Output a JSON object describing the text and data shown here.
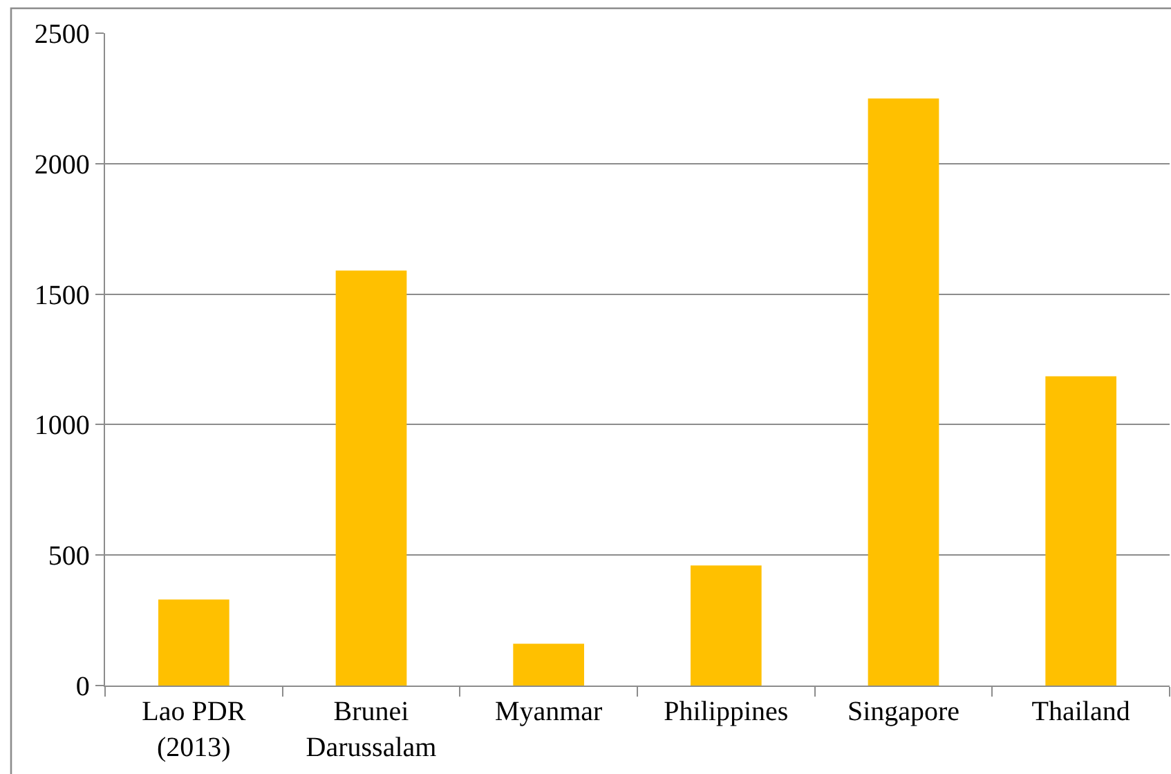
{
  "chart_data": {
    "type": "bar",
    "categories": [
      "Lao PDR (2013)",
      "Brunei Darussalam",
      "Myanmar",
      "Philippines",
      "Singapore",
      "Thailand"
    ],
    "values": [
      330,
      1590,
      160,
      460,
      2250,
      1185
    ],
    "color": "#ffc000",
    "ylim": [
      0,
      2500
    ],
    "yticks": [
      0,
      500,
      1000,
      1500,
      2000,
      2500
    ],
    "grid": "y"
  }
}
